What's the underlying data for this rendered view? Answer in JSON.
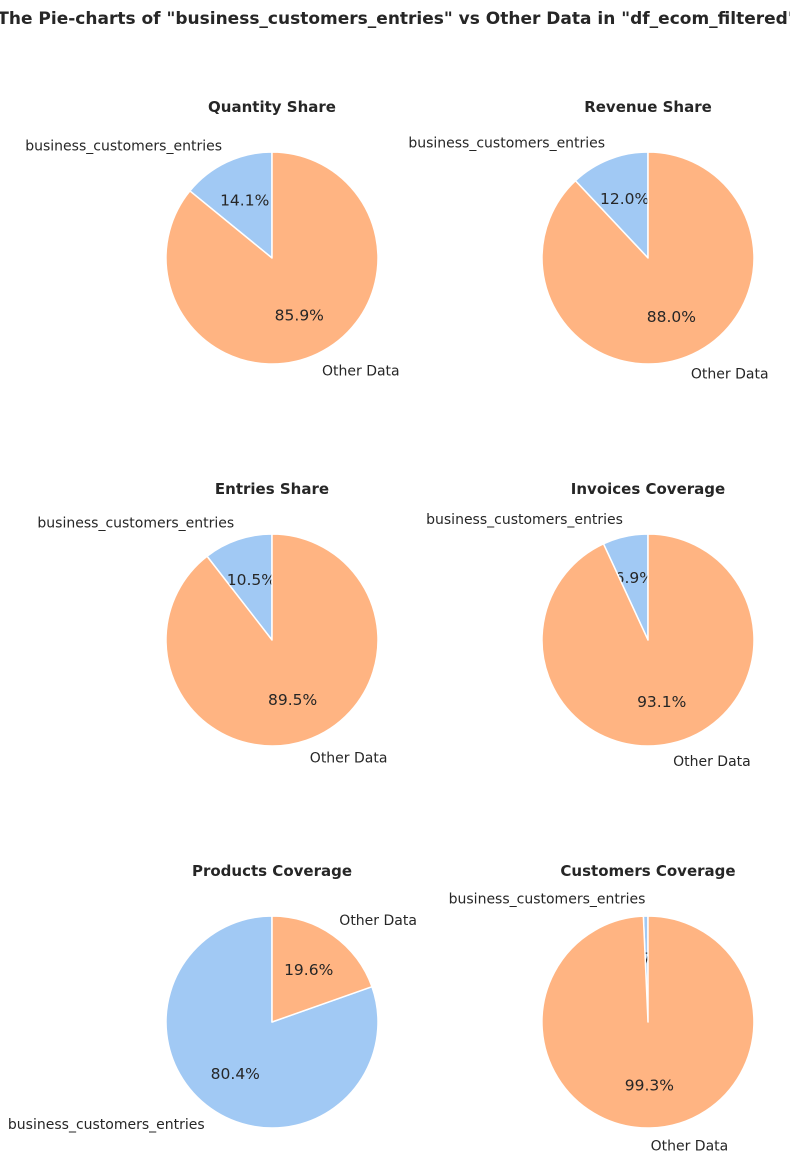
{
  "title": "The Pie-charts of \"business_customers_entries\" vs Other Data in \"df_ecom_filtered\"",
  "colors": {
    "business_customers_entries": "#a1c9f4",
    "Other Data": "#ffb482"
  },
  "chart_data": [
    {
      "type": "pie",
      "title": "Quantity Share",
      "labels": [
        "business_customers_entries",
        "Other Data"
      ],
      "values": [
        14.1,
        85.9
      ],
      "pct_labels": [
        "14.1%",
        "85.9%"
      ]
    },
    {
      "type": "pie",
      "title": "Revenue Share",
      "labels": [
        "business_customers_entries",
        "Other Data"
      ],
      "values": [
        12.0,
        88.0
      ],
      "pct_labels": [
        "12.0%",
        "88.0%"
      ]
    },
    {
      "type": "pie",
      "title": "Entries Share",
      "labels": [
        "business_customers_entries",
        "Other Data"
      ],
      "values": [
        10.5,
        89.5
      ],
      "pct_labels": [
        "10.5%",
        "89.5%"
      ]
    },
    {
      "type": "pie",
      "title": "Invoices Coverage",
      "labels": [
        "business_customers_entries",
        "Other Data"
      ],
      "values": [
        6.9,
        93.1
      ],
      "pct_labels": [
        "6.9%",
        "93.1%"
      ]
    },
    {
      "type": "pie",
      "title": "Products Coverage",
      "labels": [
        "business_customers_entries",
        "Other Data"
      ],
      "values": [
        80.4,
        19.6
      ],
      "pct_labels": [
        "80.4%",
        "19.6%"
      ]
    },
    {
      "type": "pie",
      "title": "Customers Coverage",
      "labels": [
        "business_customers_entries",
        "Other Data"
      ],
      "values": [
        0.7,
        99.3
      ],
      "pct_labels": [
        "0.7%",
        "99.3%"
      ]
    }
  ]
}
